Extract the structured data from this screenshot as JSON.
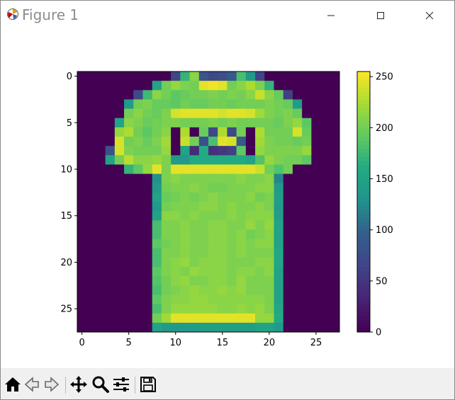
{
  "window": {
    "title": "Figure 1",
    "app_icon": "matplotlib-icon",
    "controls": [
      "minimize-icon",
      "maximize-icon",
      "close-icon"
    ]
  },
  "toolbar": {
    "buttons": [
      {
        "icon": "home-icon",
        "name": "home-button"
      },
      {
        "icon": "back-arrow-icon",
        "name": "back-button"
      },
      {
        "icon": "forward-arrow-icon",
        "name": "forward-button"
      },
      {
        "icon": "pan-move-icon",
        "name": "pan-button"
      },
      {
        "icon": "zoom-magnifier-icon",
        "name": "zoom-button"
      },
      {
        "icon": "configure-subplots-icon",
        "name": "configure-subplots-button"
      },
      {
        "icon": "save-floppy-icon",
        "name": "save-button"
      }
    ]
  },
  "chart_data": {
    "type": "heatmap",
    "colormap": "viridis",
    "shape": [
      28,
      28
    ],
    "x_ticks": [
      "0",
      "5",
      "10",
      "15",
      "20",
      "25"
    ],
    "y_ticks": [
      "0",
      "5",
      "10",
      "15",
      "20",
      "25"
    ],
    "colorbar": {
      "range": [
        0,
        255
      ],
      "ticks": [
        "0",
        "50",
        "100",
        "150",
        "200",
        "250"
      ]
    },
    "grid": false,
    "values": [
      [
        0,
        0,
        0,
        0,
        0,
        0,
        0,
        0,
        0,
        0,
        65,
        170,
        210,
        85,
        70,
        75,
        90,
        180,
        140,
        65,
        0,
        0,
        0,
        0,
        0,
        0,
        0,
        0
      ],
      [
        0,
        0,
        0,
        0,
        0,
        0,
        0,
        0,
        150,
        200,
        215,
        205,
        200,
        245,
        250,
        245,
        200,
        210,
        225,
        205,
        170,
        0,
        0,
        0,
        0,
        0,
        0,
        0
      ],
      [
        0,
        0,
        0,
        0,
        0,
        0,
        70,
        175,
        210,
        200,
        190,
        195,
        200,
        200,
        205,
        200,
        205,
        200,
        210,
        235,
        210,
        195,
        60,
        0,
        0,
        0,
        0,
        0
      ],
      [
        0,
        0,
        0,
        0,
        0,
        140,
        200,
        205,
        195,
        195,
        190,
        200,
        195,
        195,
        200,
        200,
        195,
        200,
        200,
        200,
        205,
        200,
        195,
        140,
        0,
        0,
        0,
        0
      ],
      [
        0,
        0,
        0,
        0,
        0,
        200,
        210,
        200,
        195,
        205,
        240,
        245,
        245,
        245,
        245,
        240,
        245,
        245,
        240,
        220,
        205,
        200,
        205,
        195,
        0,
        0,
        0,
        0
      ],
      [
        0,
        0,
        0,
        0,
        150,
        210,
        205,
        195,
        200,
        205,
        205,
        200,
        200,
        200,
        205,
        200,
        205,
        200,
        200,
        200,
        200,
        195,
        205,
        215,
        190,
        0,
        0,
        0
      ],
      [
        0,
        0,
        0,
        0,
        215,
        225,
        200,
        190,
        200,
        210,
        0,
        225,
        0,
        195,
        70,
        225,
        70,
        200,
        0,
        225,
        200,
        200,
        200,
        240,
        195,
        0,
        0,
        0
      ],
      [
        0,
        0,
        0,
        0,
        240,
        200,
        205,
        195,
        205,
        220,
        0,
        235,
        200,
        80,
        180,
        245,
        240,
        90,
        0,
        220,
        205,
        200,
        200,
        195,
        200,
        0,
        0,
        0
      ],
      [
        0,
        0,
        0,
        80,
        240,
        205,
        200,
        200,
        200,
        215,
        0,
        150,
        40,
        160,
        45,
        50,
        60,
        190,
        0,
        215,
        205,
        205,
        205,
        205,
        215,
        0,
        0,
        0
      ],
      [
        0,
        0,
        0,
        150,
        200,
        230,
        210,
        210,
        215,
        205,
        140,
        140,
        160,
        160,
        160,
        160,
        160,
        160,
        150,
        185,
        215,
        205,
        200,
        200,
        190,
        0,
        0,
        0
      ],
      [
        0,
        0,
        0,
        0,
        0,
        170,
        190,
        215,
        245,
        205,
        245,
        245,
        245,
        245,
        245,
        245,
        245,
        245,
        245,
        235,
        200,
        185,
        200,
        0,
        0,
        0,
        0,
        0
      ],
      [
        0,
        0,
        0,
        0,
        0,
        0,
        0,
        0,
        130,
        205,
        210,
        205,
        205,
        205,
        205,
        205,
        205,
        210,
        205,
        205,
        210,
        120,
        0,
        0,
        0,
        0,
        0,
        0
      ],
      [
        0,
        0,
        0,
        0,
        0,
        0,
        0,
        0,
        140,
        200,
        205,
        205,
        210,
        205,
        200,
        200,
        205,
        205,
        205,
        210,
        210,
        140,
        0,
        0,
        0,
        0,
        0,
        0
      ],
      [
        0,
        0,
        0,
        0,
        0,
        0,
        0,
        0,
        150,
        195,
        200,
        205,
        200,
        205,
        210,
        205,
        205,
        205,
        210,
        200,
        205,
        145,
        0,
        0,
        0,
        0,
        0,
        0
      ],
      [
        0,
        0,
        0,
        0,
        0,
        0,
        0,
        0,
        140,
        200,
        205,
        205,
        205,
        210,
        210,
        205,
        210,
        205,
        205,
        210,
        205,
        140,
        0,
        0,
        0,
        0,
        0,
        0
      ],
      [
        0,
        0,
        0,
        0,
        0,
        0,
        0,
        0,
        150,
        210,
        210,
        205,
        210,
        205,
        205,
        205,
        210,
        205,
        210,
        210,
        210,
        145,
        0,
        0,
        0,
        0,
        0,
        0
      ],
      [
        0,
        0,
        0,
        0,
        0,
        0,
        0,
        0,
        180,
        205,
        205,
        210,
        205,
        205,
        210,
        210,
        205,
        205,
        215,
        205,
        215,
        150,
        0,
        0,
        0,
        0,
        0,
        0
      ],
      [
        0,
        0,
        0,
        0,
        0,
        0,
        0,
        0,
        180,
        205,
        205,
        210,
        205,
        205,
        210,
        210,
        205,
        210,
        200,
        205,
        210,
        150,
        0,
        0,
        0,
        0,
        0,
        0
      ],
      [
        0,
        0,
        0,
        0,
        0,
        0,
        0,
        0,
        190,
        200,
        205,
        210,
        205,
        205,
        210,
        210,
        205,
        210,
        205,
        210,
        210,
        150,
        0,
        0,
        0,
        0,
        0,
        0
      ],
      [
        0,
        0,
        0,
        0,
        0,
        0,
        0,
        0,
        180,
        205,
        205,
        210,
        205,
        205,
        210,
        210,
        205,
        210,
        205,
        205,
        205,
        155,
        0,
        0,
        0,
        0,
        0,
        0
      ],
      [
        0,
        0,
        0,
        0,
        0,
        0,
        0,
        0,
        180,
        205,
        210,
        215,
        205,
        210,
        210,
        210,
        205,
        205,
        205,
        210,
        210,
        155,
        0,
        0,
        0,
        0,
        0,
        0
      ],
      [
        0,
        0,
        0,
        0,
        0,
        0,
        0,
        0,
        190,
        205,
        210,
        205,
        215,
        210,
        210,
        210,
        205,
        210,
        210,
        205,
        210,
        150,
        0,
        0,
        0,
        0,
        0,
        0
      ],
      [
        0,
        0,
        0,
        0,
        0,
        0,
        0,
        0,
        185,
        200,
        210,
        215,
        205,
        205,
        210,
        210,
        205,
        215,
        205,
        205,
        205,
        150,
        0,
        0,
        0,
        0,
        0,
        0
      ],
      [
        0,
        0,
        0,
        0,
        0,
        0,
        0,
        0,
        180,
        200,
        205,
        210,
        215,
        210,
        210,
        215,
        210,
        215,
        205,
        205,
        205,
        150,
        0,
        0,
        0,
        0,
        0,
        0
      ],
      [
        0,
        0,
        0,
        0,
        0,
        0,
        0,
        0,
        190,
        205,
        210,
        210,
        215,
        215,
        210,
        210,
        210,
        210,
        210,
        210,
        205,
        150,
        0,
        0,
        0,
        0,
        0,
        0
      ],
      [
        0,
        0,
        0,
        0,
        0,
        0,
        0,
        0,
        180,
        205,
        215,
        215,
        215,
        215,
        215,
        210,
        210,
        215,
        210,
        215,
        205,
        155,
        0,
        0,
        0,
        0,
        0,
        0
      ],
      [
        0,
        0,
        0,
        0,
        0,
        0,
        0,
        0,
        200,
        220,
        245,
        245,
        245,
        245,
        245,
        245,
        245,
        245,
        245,
        215,
        215,
        160,
        0,
        0,
        0,
        0,
        0,
        0
      ],
      [
        0,
        0,
        0,
        0,
        0,
        0,
        0,
        0,
        150,
        140,
        140,
        140,
        140,
        145,
        145,
        145,
        145,
        145,
        145,
        150,
        150,
        140,
        0,
        0,
        0,
        0,
        0,
        0
      ]
    ]
  }
}
